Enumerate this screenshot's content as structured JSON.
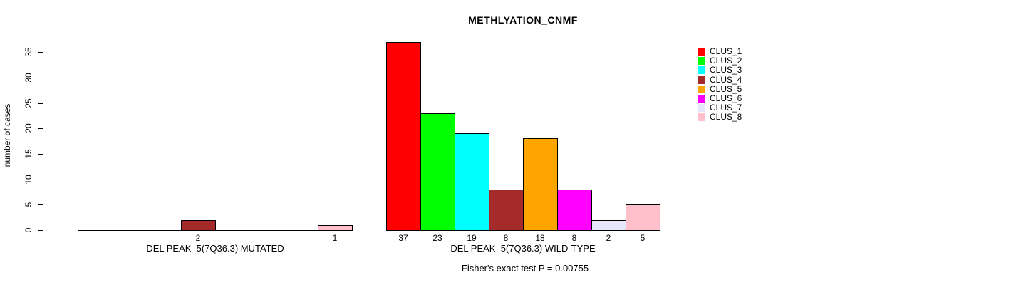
{
  "title": "METHLYATION_CNMF",
  "y_axis": {
    "label": "number of cases",
    "ticks": [
      0,
      5,
      10,
      15,
      20,
      25,
      30,
      35
    ]
  },
  "footer": "Fisher's exact test P = 0.00755",
  "chart_data": {
    "type": "bar",
    "title": "METHLYATION_CNMF",
    "xlabel": "",
    "ylabel": "number of cases",
    "ylim": [
      0,
      37
    ],
    "grid": false,
    "legend_position": "right",
    "clusters": [
      "CLUS_1",
      "CLUS_2",
      "CLUS_3",
      "CLUS_4",
      "CLUS_5",
      "CLUS_6",
      "CLUS_7",
      "CLUS_8"
    ],
    "cluster_colors": [
      "#FF0000",
      "#00FF00",
      "#00FFFF",
      "#A52A2A",
      "#FFA500",
      "#FF00FF",
      "#E6E6FA",
      "#FFC0CB"
    ],
    "groups": [
      {
        "label": "DEL PEAK  5(7Q36.3) MUTATED",
        "values": [
          0,
          0,
          0,
          2,
          0,
          0,
          0,
          1
        ]
      },
      {
        "label": "DEL PEAK  5(7Q36.3) WILD-TYPE",
        "values": [
          37,
          23,
          19,
          8,
          18,
          8,
          2,
          5
        ]
      }
    ],
    "annotation": "Fisher's exact test P = 0.00755"
  }
}
